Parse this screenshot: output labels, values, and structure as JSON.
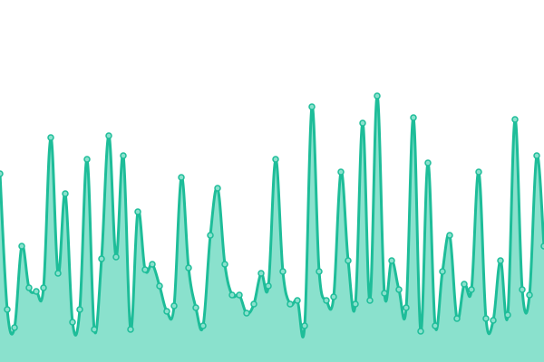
{
  "chart_data": {
    "type": "area",
    "title": "",
    "xlabel": "",
    "ylabel": "",
    "grid": false,
    "legend": "none",
    "ylim": [
      0,
      100
    ],
    "x": [
      0,
      1,
      2,
      3,
      4,
      5,
      6,
      7,
      8,
      9,
      10,
      11,
      12,
      13,
      14,
      15,
      16,
      17,
      18,
      19,
      20,
      21,
      22,
      23,
      24,
      25,
      26,
      27,
      28,
      29,
      30,
      31,
      32,
      33,
      34,
      35,
      36,
      37,
      38,
      39,
      40,
      41,
      42,
      43,
      44,
      45,
      46,
      47,
      48,
      49,
      50,
      51,
      52,
      53,
      54,
      55,
      56,
      57,
      58,
      59,
      60,
      61,
      62,
      63,
      64,
      65,
      66,
      67,
      68,
      69,
      70,
      71,
      72,
      73,
      74,
      75
    ],
    "series": [
      {
        "values": [
          52,
          14.5,
          9.5,
          32,
          20.5,
          19.5,
          20.5,
          62,
          24.5,
          46.5,
          11,
          14.5,
          56,
          9,
          28.5,
          62.5,
          29,
          57,
          9,
          41.5,
          25.5,
          27,
          21,
          14,
          15.5,
          51,
          26,
          15,
          10,
          35,
          48,
          27,
          18.5,
          18.5,
          13.5,
          16,
          24.5,
          21,
          56,
          25,
          16,
          17,
          10,
          70.5,
          25,
          17,
          18,
          52.5,
          28,
          16,
          66,
          17,
          73.5,
          19,
          28,
          20,
          15,
          67.5,
          8.5,
          55,
          10,
          25,
          35,
          12,
          21.5,
          20,
          52.5,
          12,
          11.5,
          28,
          13,
          67,
          20,
          18.5,
          57,
          32
        ]
      }
    ],
    "colors": {
      "line": "#1ebd99",
      "fill": "#8ae1cd",
      "marker_fill": "#8ae1cd",
      "marker_stroke": "#1ebd99"
    }
  }
}
